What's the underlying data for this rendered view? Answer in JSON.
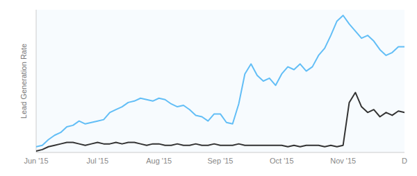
{
  "chart_data": {
    "type": "line",
    "y_label": "Lead Generation Rate",
    "categories": [
      "Jun '15",
      null,
      null,
      null,
      null,
      null,
      null,
      null,
      null,
      null,
      "Jul '15",
      null,
      null,
      null,
      null,
      null,
      null,
      null,
      null,
      null,
      "Aug '15",
      null,
      null,
      null,
      null,
      null,
      null,
      null,
      null,
      null,
      "Sep '15",
      null,
      null,
      null,
      null,
      null,
      null,
      null,
      null,
      null,
      "Oct '15",
      null,
      null,
      null,
      null,
      null,
      null,
      null,
      null,
      null,
      "Nov '15",
      null,
      null,
      null,
      null,
      null,
      null,
      null,
      null,
      null,
      "D"
    ],
    "series": [
      {
        "color": "#62bef6",
        "values": [
          0.04,
          0.05,
          0.09,
          0.12,
          0.14,
          0.18,
          0.19,
          0.22,
          0.2,
          0.21,
          0.22,
          0.23,
          0.28,
          0.3,
          0.32,
          0.35,
          0.36,
          0.38,
          0.37,
          0.36,
          0.38,
          0.37,
          0.34,
          0.32,
          0.33,
          0.3,
          0.26,
          0.25,
          0.22,
          0.27,
          0.27,
          0.21,
          0.2,
          0.34,
          0.55,
          0.62,
          0.54,
          0.5,
          0.52,
          0.47,
          0.55,
          0.6,
          0.58,
          0.62,
          0.57,
          0.6,
          0.68,
          0.73,
          0.82,
          0.92,
          0.96,
          0.9,
          0.85,
          0.8,
          0.82,
          0.78,
          0.72,
          0.68,
          0.7,
          0.74,
          0.74
        ]
      },
      {
        "color": "#333333",
        "values": [
          0.01,
          0.02,
          0.04,
          0.05,
          0.06,
          0.07,
          0.07,
          0.06,
          0.05,
          0.06,
          0.07,
          0.06,
          0.06,
          0.07,
          0.06,
          0.07,
          0.07,
          0.06,
          0.05,
          0.06,
          0.06,
          0.05,
          0.05,
          0.06,
          0.05,
          0.05,
          0.06,
          0.05,
          0.05,
          0.06,
          0.05,
          0.05,
          0.05,
          0.06,
          0.05,
          0.05,
          0.05,
          0.05,
          0.05,
          0.05,
          0.05,
          0.04,
          0.05,
          0.04,
          0.05,
          0.05,
          0.05,
          0.04,
          0.05,
          0.04,
          0.05,
          0.35,
          0.42,
          0.32,
          0.28,
          0.3,
          0.25,
          0.28,
          0.26,
          0.29,
          0.28
        ]
      }
    ],
    "ylim": [
      0,
      1.0
    ],
    "tick_labels": "x"
  }
}
